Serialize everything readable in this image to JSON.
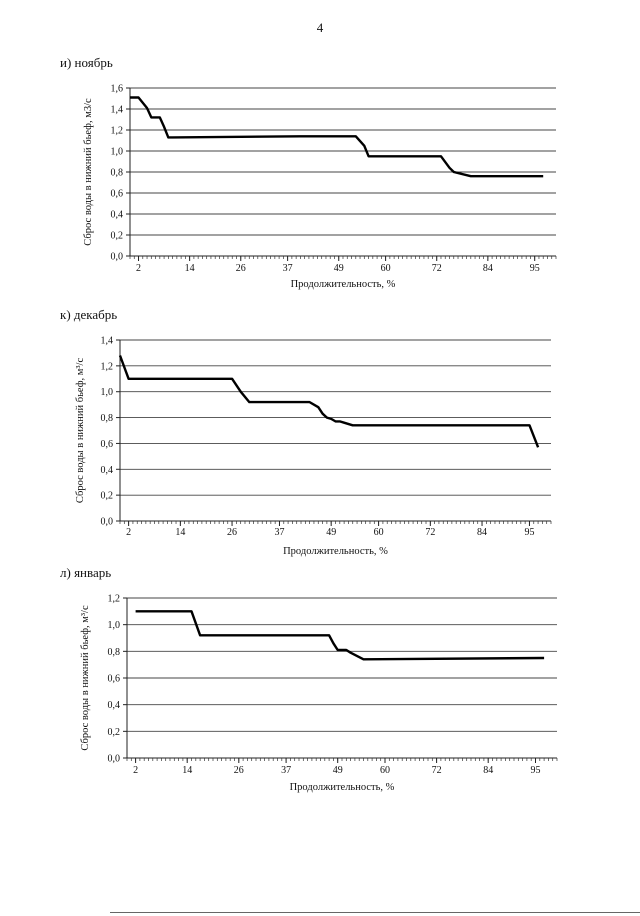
{
  "page_number": "4",
  "chart_data": [
    {
      "type": "line",
      "panel_title": "и) ноябрь",
      "xlabel": "Продолжительность, %",
      "ylabel": "Сброс воды в нижний бьеф, м3/с",
      "xlim": [
        0,
        100
      ],
      "ylim": [
        0,
        1.6
      ],
      "ytick_labels": [
        "0,0",
        "0,2",
        "0,4",
        "0,6",
        "0,8",
        "1,0",
        "1,2",
        "1,4",
        "1,6"
      ],
      "xtick_values": [
        2,
        14,
        26,
        37,
        49,
        60,
        72,
        84,
        95
      ],
      "xtick_labels": [
        "2",
        "14",
        "26",
        "37",
        "49",
        "60",
        "72",
        "84",
        "95"
      ],
      "grid": true,
      "series": [
        {
          "name": "ноябрь",
          "x": [
            0,
            2,
            4,
            5,
            6,
            7,
            8,
            9,
            10,
            40,
            53,
            55,
            56,
            73,
            75,
            76,
            80,
            81,
            97
          ],
          "y": [
            1.51,
            1.51,
            1.41,
            1.32,
            1.32,
            1.32,
            1.23,
            1.13,
            1.13,
            1.14,
            1.14,
            1.05,
            0.95,
            0.95,
            0.84,
            0.8,
            0.76,
            0.76,
            0.76
          ]
        }
      ]
    },
    {
      "type": "line",
      "panel_title": "к) декабрь",
      "xlabel": "Продолжительность, %",
      "ylabel": "Сброс воды в нижний бьеф, м³/с",
      "xlim": [
        0,
        100
      ],
      "ylim": [
        0,
        1.4
      ],
      "ytick_labels": [
        "0,0",
        "0,2",
        "0,4",
        "0,6",
        "0,8",
        "1,0",
        "1,2",
        "1,4"
      ],
      "xtick_values": [
        2,
        14,
        26,
        37,
        49,
        60,
        72,
        84,
        95
      ],
      "xtick_labels": [
        "2",
        "14",
        "26",
        "37",
        "49",
        "60",
        "72",
        "84",
        "95"
      ],
      "grid": true,
      "series": [
        {
          "name": "декабрь",
          "x": [
            0,
            2,
            12,
            20,
            25,
            26,
            28,
            30,
            33,
            38,
            44,
            46,
            47,
            48,
            49,
            50,
            51,
            52,
            54,
            95,
            97
          ],
          "y": [
            1.28,
            1.1,
            1.1,
            1.1,
            1.1,
            1.1,
            1.0,
            0.92,
            0.92,
            0.92,
            0.92,
            0.88,
            0.83,
            0.8,
            0.79,
            0.77,
            0.77,
            0.76,
            0.74,
            0.74,
            0.57
          ]
        }
      ]
    },
    {
      "type": "line",
      "panel_title": "л) январь",
      "xlabel": "Продолжительность, %",
      "ylabel": "Сброс воды в нижний бьеф, м³/с",
      "xlim": [
        0,
        100
      ],
      "ylim": [
        0,
        1.2
      ],
      "ytick_labels": [
        "0,0",
        "0,2",
        "0,4",
        "0,6",
        "0,8",
        "1,0",
        "1,2"
      ],
      "xtick_values": [
        2,
        14,
        26,
        37,
        49,
        60,
        72,
        84,
        95
      ],
      "xtick_labels": [
        "2",
        "14",
        "26",
        "37",
        "49",
        "60",
        "72",
        "84",
        "95"
      ],
      "grid": true,
      "series": [
        {
          "name": "январь",
          "x": [
            2,
            14,
            15,
            17,
            25,
            37,
            47,
            48,
            49,
            50,
            51,
            52,
            55,
            97
          ],
          "y": [
            1.1,
            1.1,
            1.1,
            0.92,
            0.92,
            0.92,
            0.92,
            0.86,
            0.81,
            0.81,
            0.81,
            0.79,
            0.74,
            0.75
          ]
        }
      ]
    }
  ]
}
